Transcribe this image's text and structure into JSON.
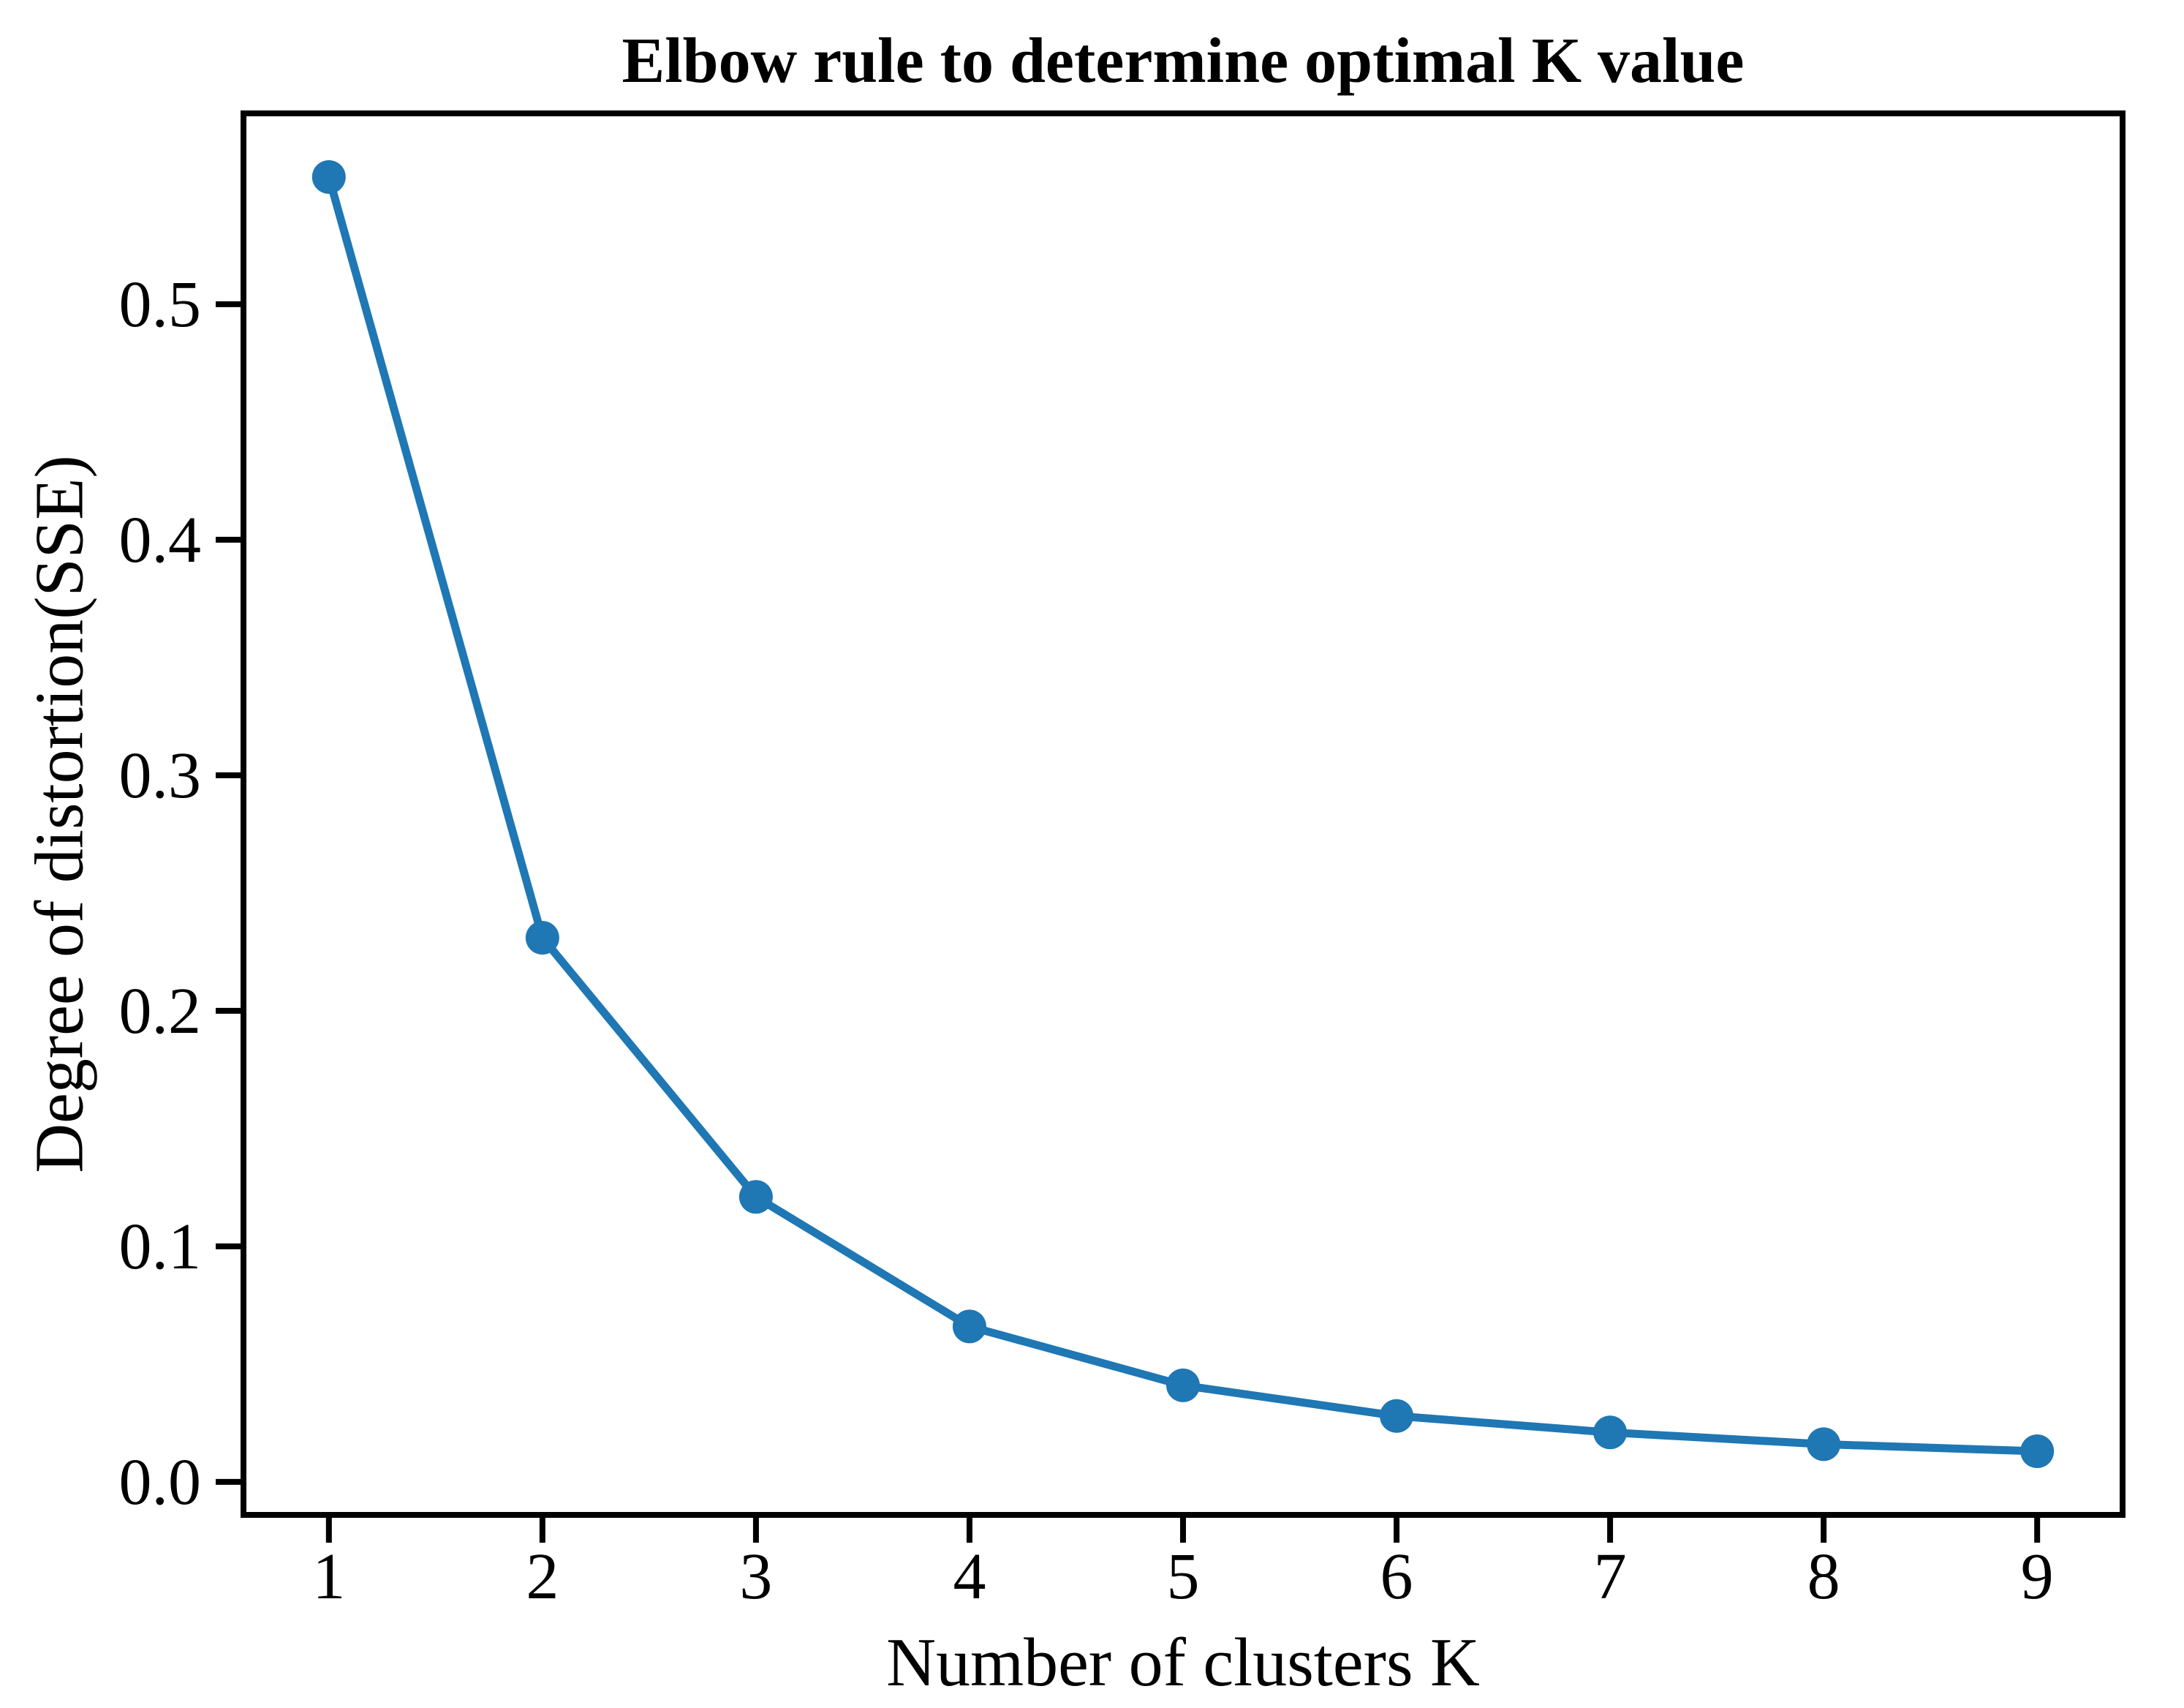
{
  "chart_data": {
    "type": "line",
    "title": "Elbow rule to determine optimal K value",
    "xlabel": "Number of clusters K",
    "ylabel": "Degree of distortion(SSE)",
    "x": [
      1,
      2,
      3,
      4,
      5,
      6,
      7,
      8,
      9
    ],
    "series": [
      {
        "name": "SSE",
        "values": [
          0.554,
          0.231,
          0.121,
          0.066,
          0.041,
          0.028,
          0.021,
          0.016,
          0.013
        ]
      }
    ],
    "xlim": [
      0.6,
      9.4
    ],
    "ylim": [
      -0.014,
      0.581
    ],
    "xticks": {
      "values": [
        1,
        2,
        3,
        4,
        5,
        6,
        7,
        8,
        9
      ],
      "labels": [
        "1",
        "2",
        "3",
        "4",
        "5",
        "6",
        "7",
        "8",
        "9"
      ]
    },
    "yticks": {
      "values": [
        0.0,
        0.1,
        0.2,
        0.3,
        0.4,
        0.5
      ],
      "labels": [
        "0.0",
        "0.1",
        "0.2",
        "0.3",
        "0.4",
        "0.5"
      ]
    },
    "grid": false,
    "legend": null,
    "marker": "circle",
    "line_color": "#1f77b4",
    "marker_color": "#1f77b4",
    "axis_color": "#000000",
    "background_color": "#ffffff"
  }
}
